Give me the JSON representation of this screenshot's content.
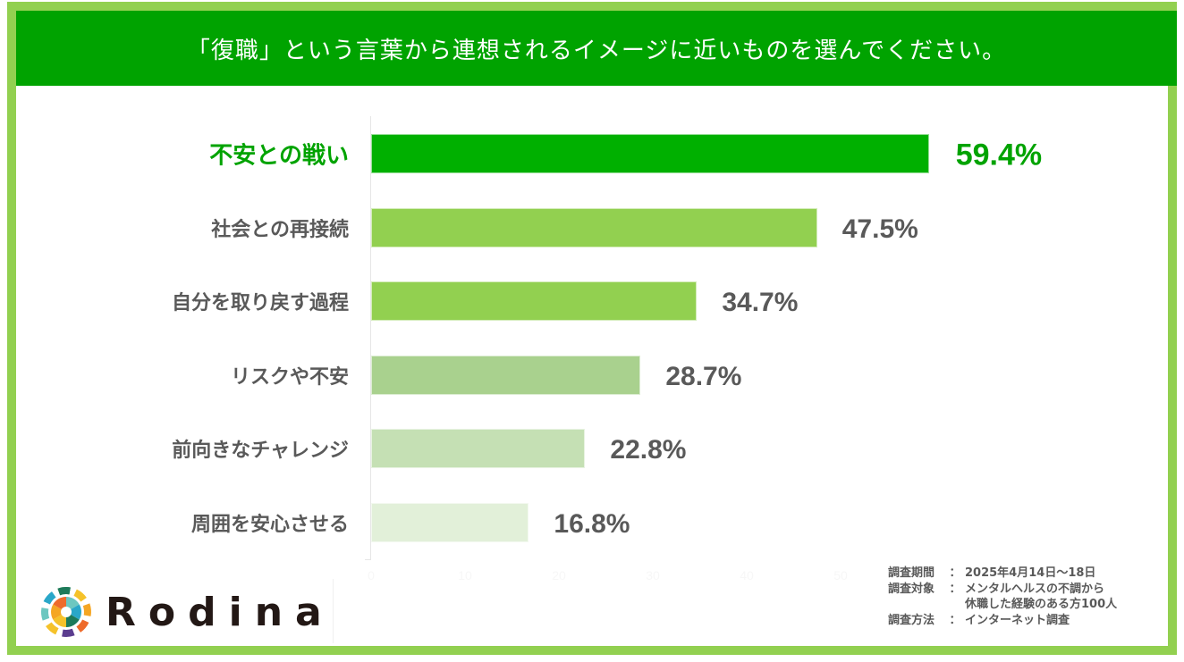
{
  "header": {
    "title": "「復職」という言葉から連想されるイメージに近いものを選んでください。"
  },
  "colors": {
    "frame_border": "#92d050",
    "title_bg": "#00a300",
    "highlight": "#00a300",
    "label_gray": "#595959"
  },
  "chart_data": {
    "type": "bar",
    "orientation": "horizontal",
    "title": "「復職」という言葉から連想されるイメージに近いものを選んでください。",
    "xlabel": "",
    "ylabel": "",
    "unit": "%",
    "xlim": [
      0,
      60
    ],
    "x_ticks": [
      "0",
      "10",
      "20",
      "30",
      "40",
      "50"
    ],
    "grid": false,
    "legend": null,
    "categories": [
      "不安との戦い",
      "社会との再接続",
      "自分を取り戻す過程",
      "リスクや不安",
      "前向きなチャレンジ",
      "周囲を安心させる"
    ],
    "values": [
      59.4,
      47.5,
      34.7,
      28.7,
      22.8,
      16.8
    ],
    "value_labels": [
      "59.4%",
      "47.5%",
      "34.7%",
      "28.7%",
      "22.8%",
      "16.8%"
    ],
    "bar_colors": [
      "#00b000",
      "#92d050",
      "#92d050",
      "#a9d18e",
      "#c5e0b4",
      "#e2f0d9"
    ],
    "highlighted_index": 0
  },
  "survey": {
    "period_label": "調査期間",
    "period_value": "2025年4月14日～18日",
    "target_label": "調査対象",
    "target_value_line1": "メンタルヘルスの不調から",
    "target_value_line2": "休職した経験のある方100人",
    "method_label": "調査方法",
    "method_value": "インターネット調査",
    "separator": "："
  },
  "logo": {
    "wordmark": "Rodina"
  }
}
